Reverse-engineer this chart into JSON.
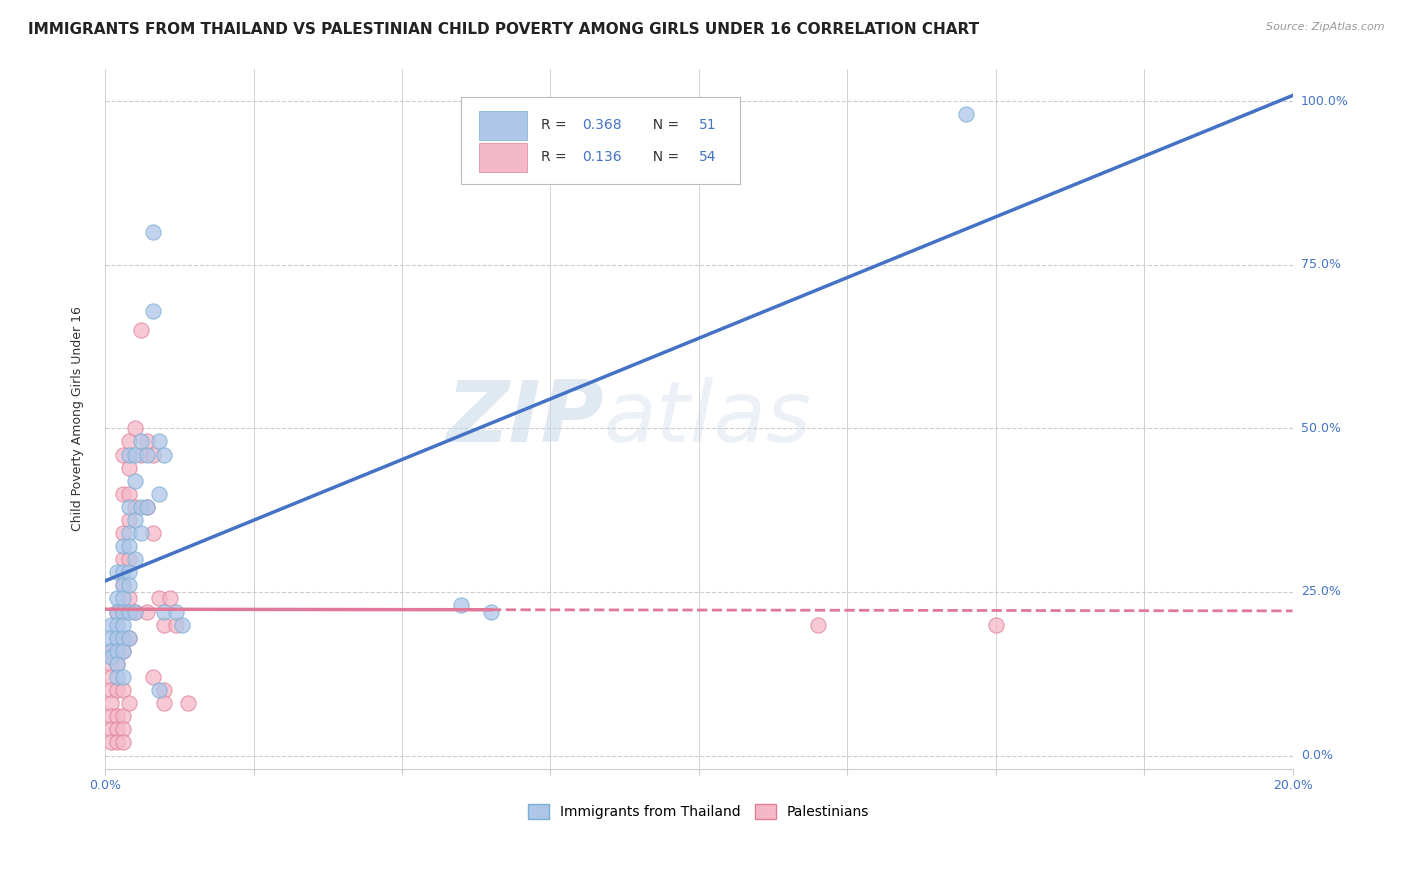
{
  "title": "IMMIGRANTS FROM THAILAND VS PALESTINIAN CHILD POVERTY AMONG GIRLS UNDER 16 CORRELATION CHART",
  "source": "Source: ZipAtlas.com",
  "ylabel": "Child Poverty Among Girls Under 16",
  "yaxis_labels": [
    "100.0%",
    "75.0%",
    "50.0%",
    "25.0%",
    "0.0%"
  ],
  "xlim": [
    0,
    0.2
  ],
  "ylim": [
    -0.02,
    1.05
  ],
  "watermark": "ZIPatlas",
  "legend_r1": "0.368",
  "legend_n1": "51",
  "legend_r2": "0.136",
  "legend_n2": "54",
  "color_blue": "#aec6e8",
  "color_blue_edge": "#7aafd4",
  "color_blue_line": "#4472c4",
  "color_pink": "#f4b8c8",
  "color_pink_edge": "#e08098",
  "color_pink_line": "#e07898",
  "grid_color": "#cccccc",
  "background_color": "#ffffff",
  "title_fontsize": 11,
  "axis_label_fontsize": 9,
  "tick_fontsize": 9,
  "watermark_fontsize": 62,
  "watermark_color": "#ccd8e8",
  "scatter_blue": [
    [
      0.001,
      0.2
    ],
    [
      0.001,
      0.18
    ],
    [
      0.001,
      0.16
    ],
    [
      0.001,
      0.15
    ],
    [
      0.002,
      0.28
    ],
    [
      0.002,
      0.24
    ],
    [
      0.002,
      0.22
    ],
    [
      0.002,
      0.2
    ],
    [
      0.002,
      0.18
    ],
    [
      0.002,
      0.16
    ],
    [
      0.002,
      0.14
    ],
    [
      0.002,
      0.12
    ],
    [
      0.003,
      0.32
    ],
    [
      0.003,
      0.28
    ],
    [
      0.003,
      0.26
    ],
    [
      0.003,
      0.24
    ],
    [
      0.003,
      0.22
    ],
    [
      0.003,
      0.2
    ],
    [
      0.003,
      0.18
    ],
    [
      0.003,
      0.16
    ],
    [
      0.003,
      0.12
    ],
    [
      0.004,
      0.46
    ],
    [
      0.004,
      0.38
    ],
    [
      0.004,
      0.34
    ],
    [
      0.004,
      0.32
    ],
    [
      0.004,
      0.28
    ],
    [
      0.004,
      0.26
    ],
    [
      0.004,
      0.22
    ],
    [
      0.004,
      0.18
    ],
    [
      0.005,
      0.46
    ],
    [
      0.005,
      0.42
    ],
    [
      0.005,
      0.36
    ],
    [
      0.005,
      0.3
    ],
    [
      0.005,
      0.22
    ],
    [
      0.006,
      0.48
    ],
    [
      0.006,
      0.38
    ],
    [
      0.006,
      0.34
    ],
    [
      0.007,
      0.46
    ],
    [
      0.007,
      0.38
    ],
    [
      0.008,
      0.8
    ],
    [
      0.008,
      0.68
    ],
    [
      0.009,
      0.48
    ],
    [
      0.009,
      0.4
    ],
    [
      0.009,
      0.1
    ],
    [
      0.01,
      0.46
    ],
    [
      0.01,
      0.22
    ],
    [
      0.012,
      0.22
    ],
    [
      0.013,
      0.2
    ],
    [
      0.06,
      0.23
    ],
    [
      0.065,
      0.22
    ],
    [
      0.145,
      0.98
    ]
  ],
  "scatter_pink": [
    [
      0.001,
      0.16
    ],
    [
      0.001,
      0.14
    ],
    [
      0.001,
      0.12
    ],
    [
      0.001,
      0.1
    ],
    [
      0.001,
      0.08
    ],
    [
      0.001,
      0.06
    ],
    [
      0.001,
      0.04
    ],
    [
      0.001,
      0.02
    ],
    [
      0.002,
      0.22
    ],
    [
      0.002,
      0.18
    ],
    [
      0.002,
      0.14
    ],
    [
      0.002,
      0.1
    ],
    [
      0.002,
      0.06
    ],
    [
      0.002,
      0.04
    ],
    [
      0.002,
      0.02
    ],
    [
      0.003,
      0.46
    ],
    [
      0.003,
      0.4
    ],
    [
      0.003,
      0.34
    ],
    [
      0.003,
      0.3
    ],
    [
      0.003,
      0.26
    ],
    [
      0.003,
      0.22
    ],
    [
      0.003,
      0.16
    ],
    [
      0.003,
      0.1
    ],
    [
      0.003,
      0.06
    ],
    [
      0.003,
      0.04
    ],
    [
      0.003,
      0.02
    ],
    [
      0.004,
      0.48
    ],
    [
      0.004,
      0.44
    ],
    [
      0.004,
      0.4
    ],
    [
      0.004,
      0.36
    ],
    [
      0.004,
      0.3
    ],
    [
      0.004,
      0.24
    ],
    [
      0.004,
      0.18
    ],
    [
      0.004,
      0.08
    ],
    [
      0.005,
      0.5
    ],
    [
      0.005,
      0.38
    ],
    [
      0.005,
      0.22
    ],
    [
      0.006,
      0.65
    ],
    [
      0.006,
      0.46
    ],
    [
      0.007,
      0.48
    ],
    [
      0.007,
      0.38
    ],
    [
      0.007,
      0.22
    ],
    [
      0.008,
      0.46
    ],
    [
      0.008,
      0.34
    ],
    [
      0.008,
      0.12
    ],
    [
      0.009,
      0.24
    ],
    [
      0.01,
      0.2
    ],
    [
      0.01,
      0.1
    ],
    [
      0.01,
      0.08
    ],
    [
      0.011,
      0.24
    ],
    [
      0.012,
      0.2
    ],
    [
      0.014,
      0.08
    ],
    [
      0.12,
      0.2
    ],
    [
      0.15,
      0.2
    ]
  ]
}
